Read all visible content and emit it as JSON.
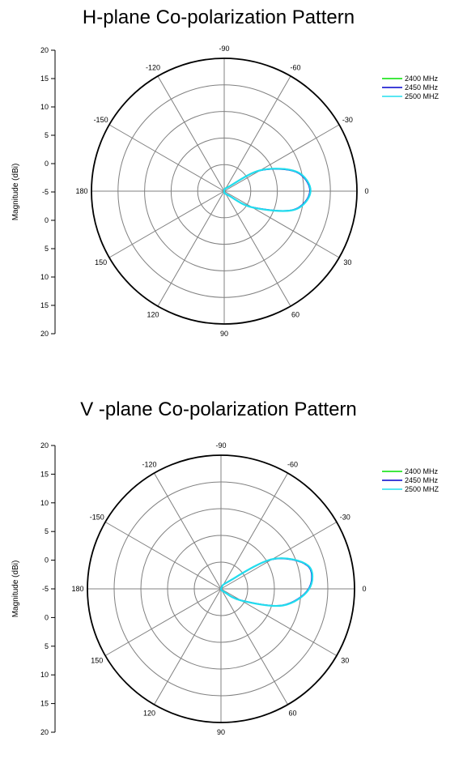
{
  "chart_data": [
    {
      "type": "polar-line",
      "title": "H-plane Co-polarization Pattern",
      "ylabel": "Magnitude (dBi)",
      "radial_ticks": [
        "20",
        "15",
        "10",
        "5",
        "0",
        "-5",
        "0",
        "5",
        "10",
        "15",
        "20"
      ],
      "angle_labels": [
        {
          "deg": -90,
          "label": "-90"
        },
        {
          "deg": -60,
          "label": "-60"
        },
        {
          "deg": -30,
          "label": "-30"
        },
        {
          "deg": 0,
          "label": "0"
        },
        {
          "deg": 30,
          "label": "30"
        },
        {
          "deg": 60,
          "label": "60"
        },
        {
          "deg": 90,
          "label": "90"
        },
        {
          "deg": 120,
          "label": "120"
        },
        {
          "deg": 150,
          "label": "150"
        },
        {
          "deg": 180,
          "label": "180"
        },
        {
          "deg": -150,
          "label": "-150"
        },
        {
          "deg": -120,
          "label": "-120"
        }
      ],
      "grid": true,
      "legend": "top-right",
      "series": [
        {
          "name": "2400 MHz",
          "color": "#00e000",
          "angles": [
            -90,
            -75,
            -60,
            -45,
            -30,
            -15,
            0,
            15,
            30,
            45,
            60,
            75,
            90
          ],
          "values": [
            0.2,
            0.3,
            0.55,
            1.0,
            6.3,
            11.3,
            13.0,
            10.9,
            4.9,
            0.9,
            0.5,
            0.3,
            0.2
          ]
        },
        {
          "name": "2450 MHz",
          "color": "#0000cc",
          "angles": [
            -90,
            -75,
            -60,
            -45,
            -30,
            -15,
            0,
            15,
            30,
            45,
            60,
            75,
            90
          ],
          "values": [
            0.2,
            0.3,
            0.5,
            0.9,
            6.2,
            11.2,
            12.9,
            10.8,
            4.8,
            0.8,
            0.4,
            0.3,
            0.2
          ]
        },
        {
          "name": "2500 MHZ",
          "color": "#22ddee",
          "angles": [
            -90,
            -75,
            -60,
            -45,
            -30,
            -15,
            0,
            15,
            30,
            45,
            60,
            75,
            90
          ],
          "values": [
            0.2,
            0.3,
            0.5,
            0.9,
            6.3,
            11.3,
            13.0,
            10.9,
            4.9,
            0.9,
            0.5,
            0.3,
            0.2
          ]
        }
      ]
    },
    {
      "type": "polar-line",
      "title": "V -plane Co-polarization Pattern",
      "ylabel": "Magnitude (dBi)",
      "radial_ticks": [
        "20",
        "15",
        "10",
        "5",
        "0",
        "-5",
        "0",
        "5",
        "10",
        "15",
        "20"
      ],
      "angle_labels": [
        {
          "deg": -90,
          "label": "-90"
        },
        {
          "deg": -60,
          "label": "-60"
        },
        {
          "deg": -30,
          "label": "-30"
        },
        {
          "deg": 0,
          "label": "0"
        },
        {
          "deg": 30,
          "label": "30"
        },
        {
          "deg": 60,
          "label": "60"
        },
        {
          "deg": 90,
          "label": "90"
        },
        {
          "deg": 120,
          "label": "120"
        },
        {
          "deg": 150,
          "label": "150"
        },
        {
          "deg": 180,
          "label": "180"
        },
        {
          "deg": -150,
          "label": "-150"
        },
        {
          "deg": -120,
          "label": "-120"
        }
      ],
      "grid": true,
      "legend": "top-right",
      "series": [
        {
          "name": "2400 MHz",
          "color": "#00e000",
          "angles": [
            -90,
            -75,
            -60,
            -45,
            -30,
            -15,
            0,
            15,
            30,
            45,
            60,
            75,
            90
          ],
          "values": [
            0,
            0.1,
            0.3,
            1.5,
            8.9,
            13.5,
            13.2,
            9.6,
            3.5,
            0.6,
            0.2,
            0.1,
            0
          ]
        },
        {
          "name": "2450 MHz",
          "color": "#0000cc",
          "angles": [
            -90,
            -75,
            -60,
            -45,
            -30,
            -15,
            0,
            15,
            30,
            45,
            60,
            75,
            90
          ],
          "values": [
            0,
            0.1,
            0.3,
            1.4,
            8.8,
            13.4,
            13.1,
            9.5,
            3.4,
            0.5,
            0.2,
            0.1,
            0
          ]
        },
        {
          "name": "2500 MHZ",
          "color": "#22ddee",
          "angles": [
            -90,
            -75,
            -60,
            -45,
            -30,
            -15,
            0,
            15,
            30,
            45,
            60,
            75,
            90
          ],
          "values": [
            0,
            0.1,
            0.3,
            1.5,
            8.9,
            13.5,
            13.2,
            9.6,
            3.5,
            0.6,
            0.2,
            0.1,
            0
          ]
        }
      ]
    }
  ]
}
